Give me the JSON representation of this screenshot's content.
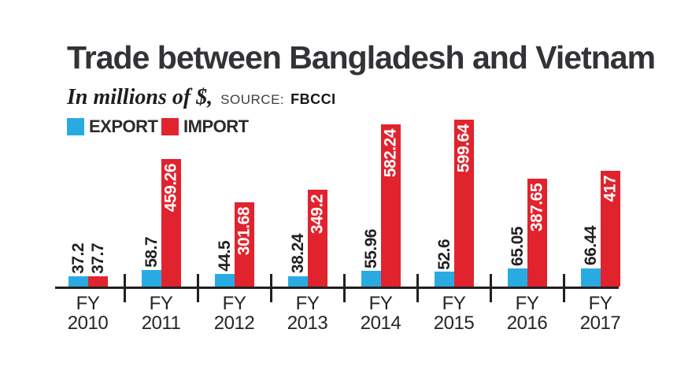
{
  "header": {
    "title": "Trade between Bangladesh and Vietnam",
    "subtitle": "In millions of $,",
    "source_label": "SOURCE:",
    "source_value": "FBCCI"
  },
  "legend": {
    "items": [
      {
        "label": "EXPORT",
        "color": "#29abe2"
      },
      {
        "label": "IMPORT",
        "color": "#e1232e"
      }
    ]
  },
  "colors": {
    "export": "#29abe2",
    "import": "#e1232e",
    "text_dark": "#231f20",
    "value_label_light": "#ffffff"
  },
  "chart_data": {
    "type": "bar",
    "title": "Trade between Bangladesh and Vietnam",
    "ylabel": "millions of $",
    "source": "FBCCI",
    "category_prefix": "FY",
    "categories": [
      "2010",
      "2011",
      "2012",
      "2013",
      "2014",
      "2015",
      "2016",
      "2017"
    ],
    "series": [
      {
        "name": "EXPORT",
        "color": "#29abe2",
        "values": [
          37.2,
          58.7,
          44.5,
          38.24,
          55.96,
          52.6,
          65.05,
          66.44
        ]
      },
      {
        "name": "IMPORT",
        "color": "#e1232e",
        "values": [
          37.7,
          459.26,
          301.68,
          349.2,
          582.24,
          599.64,
          387.65,
          417
        ]
      }
    ],
    "value_labels": true,
    "ylim": [
      0,
      600
    ],
    "grid": false,
    "legend_position": "top-left",
    "axis_style": "baseline-with-group-ticks"
  }
}
